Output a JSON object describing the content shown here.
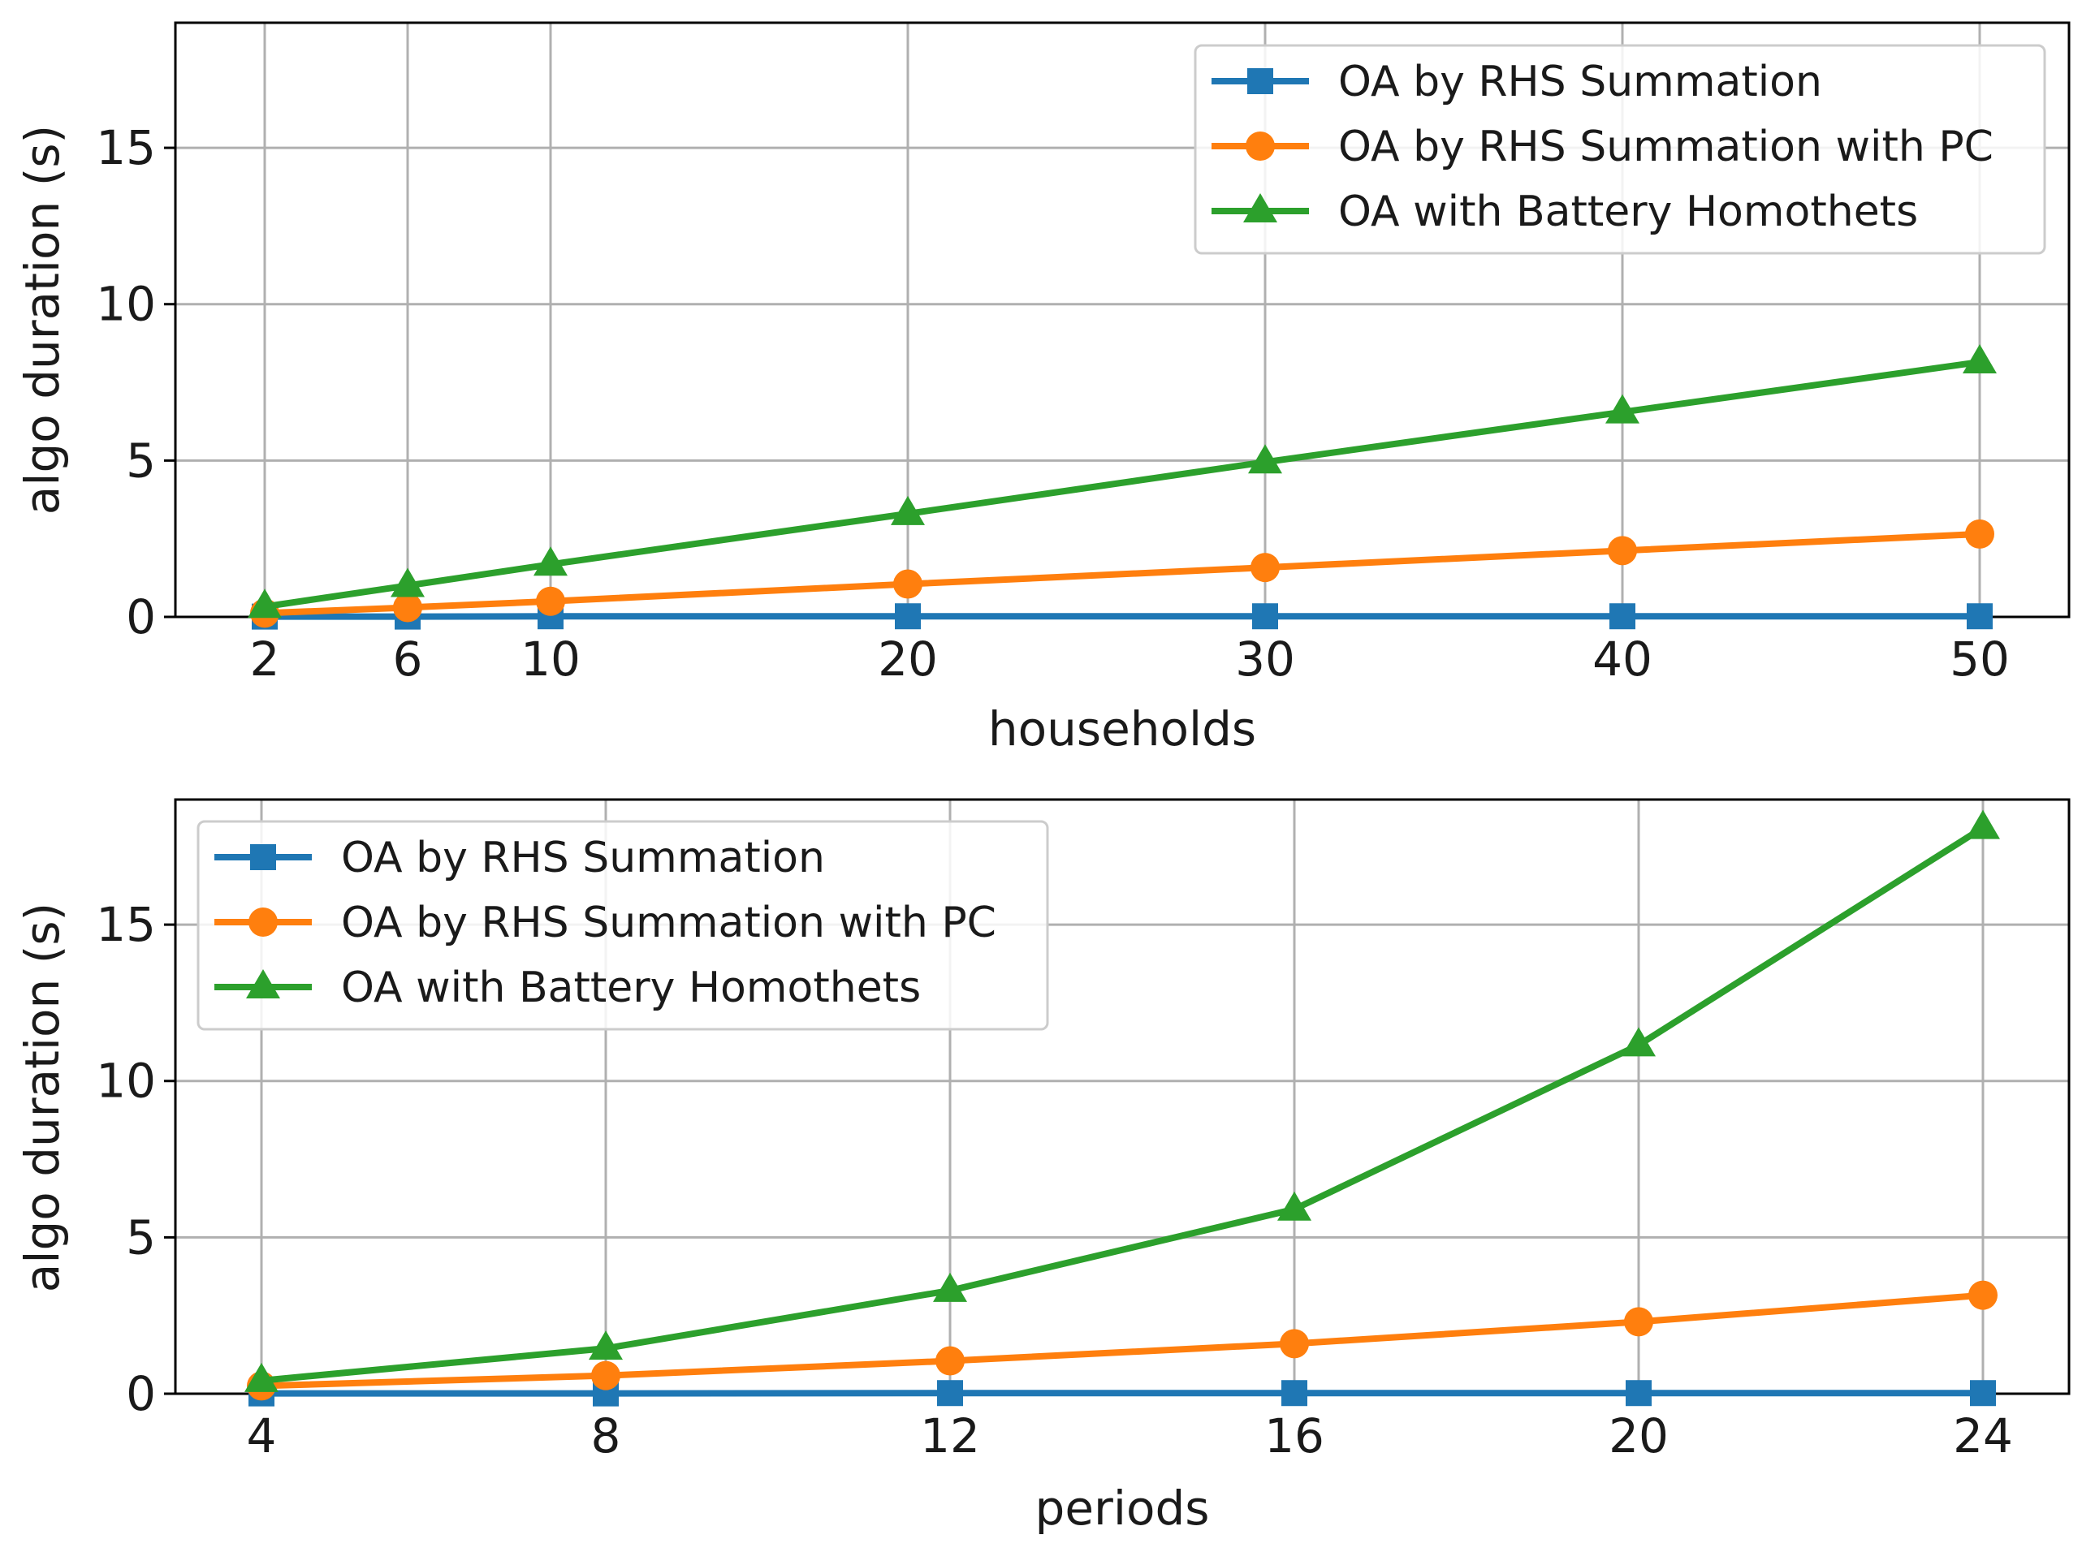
{
  "colors": {
    "series_1": "#1f77b4",
    "series_2": "#ff7f0e",
    "series_3": "#2ca02c",
    "grid": "#b0b0b0",
    "axis": "#000000"
  },
  "chart_data": [
    {
      "type": "line",
      "xlabel": "households",
      "ylabel": "algo duration (s)",
      "x": [
        2,
        6,
        10,
        20,
        30,
        40,
        50
      ],
      "xticks": [
        "2",
        "6",
        "10",
        "20",
        "30",
        "40",
        "50"
      ],
      "xlim": [
        -0.5,
        52.5
      ],
      "ylim": [
        0,
        19
      ],
      "yticks": [
        "0",
        "5",
        "10",
        "15"
      ],
      "grid": true,
      "legend": "top-right",
      "series": [
        {
          "name": "OA by RHS Summation",
          "marker": "square",
          "values": [
            0.01,
            0.01,
            0.02,
            0.02,
            0.02,
            0.02,
            0.02
          ]
        },
        {
          "name": "OA by RHS Summation with PC",
          "marker": "circle",
          "values": [
            0.12,
            0.3,
            0.5,
            1.05,
            1.58,
            2.12,
            2.65
          ]
        },
        {
          "name": "OA with Battery Homothets",
          "marker": "triangle",
          "values": [
            0.33,
            1.0,
            1.68,
            3.3,
            4.95,
            6.55,
            8.15
          ]
        }
      ]
    },
    {
      "type": "line",
      "xlabel": "periods",
      "ylabel": "algo duration (s)",
      "x": [
        4,
        8,
        12,
        16,
        20,
        24
      ],
      "xticks": [
        "4",
        "8",
        "12",
        "16",
        "20",
        "24"
      ],
      "xlim": [
        3.0,
        25.0
      ],
      "ylim": [
        0,
        19
      ],
      "yticks": [
        "0",
        "5",
        "10",
        "15"
      ],
      "grid": true,
      "legend": "top-left",
      "series": [
        {
          "name": "OA by RHS Summation",
          "marker": "square",
          "values": [
            0.01,
            0.01,
            0.02,
            0.02,
            0.02,
            0.02
          ]
        },
        {
          "name": "OA by RHS Summation with PC",
          "marker": "circle",
          "values": [
            0.25,
            0.58,
            1.05,
            1.6,
            2.3,
            3.15
          ]
        },
        {
          "name": "OA with Battery Homothets",
          "marker": "triangle",
          "values": [
            0.42,
            1.45,
            3.3,
            5.9,
            11.15,
            18.1
          ]
        }
      ]
    }
  ]
}
